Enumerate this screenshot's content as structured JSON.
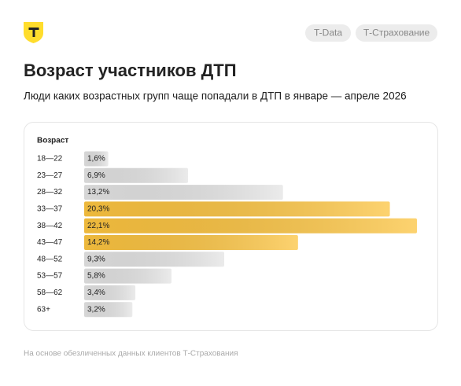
{
  "header": {
    "tags": [
      "T-Data",
      "Т-Страхование"
    ]
  },
  "chart_data": {
    "type": "hbar",
    "title": "Возраст участников ДТП",
    "subtitle": "Люди каких возрастных групп чаще попадали в ДТП в январе — апреле 2026",
    "y_label": "Возраст",
    "categories": [
      "18—22",
      "23—27",
      "28—32",
      "33—37",
      "38—42",
      "43—47",
      "48—52",
      "53—57",
      "58—62",
      "63+"
    ],
    "values": [
      1.6,
      6.9,
      13.2,
      20.3,
      22.1,
      14.2,
      9.3,
      5.8,
      3.4,
      3.2
    ],
    "value_labels": [
      "1,6%",
      "6,9%",
      "13,2%",
      "20,3%",
      "22,1%",
      "14,2%",
      "9,3%",
      "5,8%",
      "3,4%",
      "3,2%"
    ],
    "colors": [
      "#e4e4e4",
      "#e4e4e4",
      "#e4e4e4",
      "#fcc440",
      "#fcc440",
      "#fcc440",
      "#e4e4e4",
      "#e4e4e4",
      "#e4e4e4",
      "#e4e4e4"
    ],
    "source": "На основе обезличенных данных клиентов Т-Страхования"
  }
}
